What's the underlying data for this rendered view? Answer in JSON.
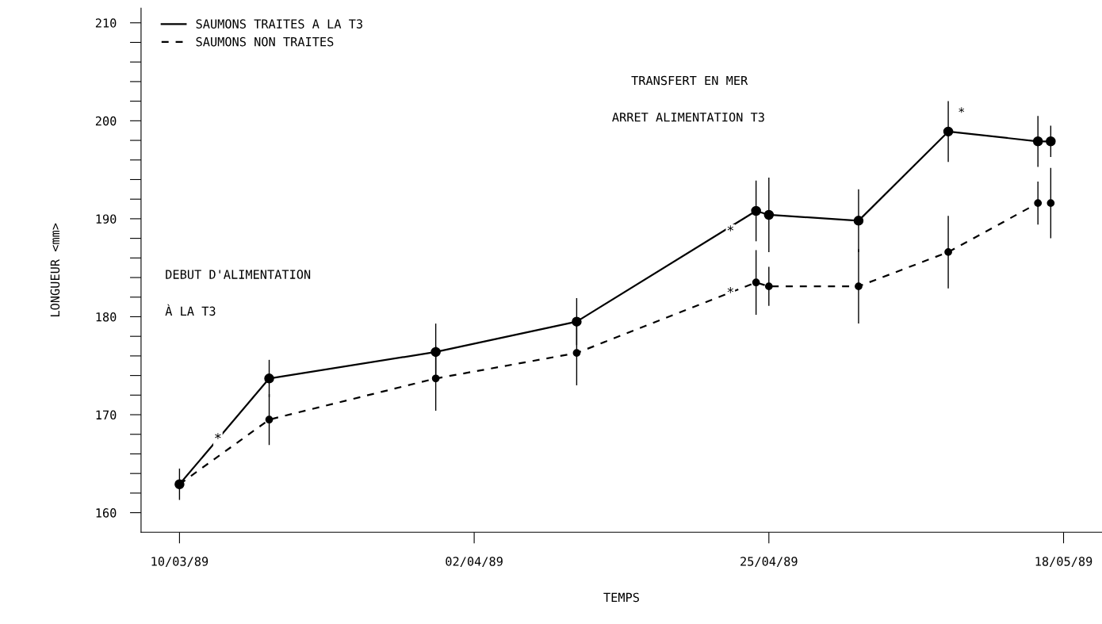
{
  "chart_data": {
    "type": "line",
    "xlabel": "TEMPS",
    "ylabel": "LONGUEUR <mm>",
    "x": [
      "1989-03-10",
      "1989-03-17",
      "1989-03-30",
      "1989-04-10",
      "1989-04-24",
      "1989-04-25",
      "1989-05-02",
      "1989-05-09",
      "1989-05-16",
      "1989-05-17"
    ],
    "series": [
      {
        "name": "SAUMONS TRAITES A LA T3",
        "color": "#000000",
        "line_style": "solid",
        "values": [
          162.9,
          173.7,
          176.4,
          179.5,
          190.8,
          190.4,
          189.8,
          198.9,
          197.9,
          197.9
        ],
        "errors": [
          1.6,
          1.9,
          2.9,
          2.4,
          3.1,
          3.8,
          3.2,
          3.1,
          2.6,
          1.6
        ]
      },
      {
        "name": "SAUMONS NON TRAITES",
        "color": "#000000",
        "line_style": "dashed",
        "values": [
          162.9,
          169.5,
          173.7,
          176.3,
          183.5,
          183.1,
          183.1,
          186.6,
          191.6,
          191.6
        ],
        "errors": [
          null,
          2.6,
          3.3,
          3.3,
          3.3,
          2.0,
          3.8,
          3.7,
          2.2,
          3.6
        ]
      }
    ],
    "marker": "circle",
    "xlim": [
      "1989-03-07",
      "1989-05-21"
    ],
    "xticks": [
      {
        "value": "1989-03-10",
        "label": "10/03/89"
      },
      {
        "value": "1989-04-02",
        "label": "02/04/89"
      },
      {
        "value": "1989-04-25",
        "label": "25/04/89"
      },
      {
        "value": "1989-05-18",
        "label": "18/05/89"
      }
    ],
    "ylim": [
      158,
      211.5
    ],
    "yticks": [
      160,
      {
        "value": 162,
        "label": null
      },
      {
        "value": 164,
        "label": null
      },
      {
        "value": 166,
        "label": null
      },
      {
        "value": 168,
        "label": null
      },
      170,
      {
        "value": 172,
        "label": null
      },
      {
        "value": 174,
        "label": null
      },
      {
        "value": 176,
        "label": null
      },
      {
        "value": 178,
        "label": null
      },
      180,
      {
        "value": 182,
        "label": null
      },
      {
        "value": 184,
        "label": null
      },
      {
        "value": 186,
        "label": null
      },
      {
        "value": 188,
        "label": null
      },
      190,
      {
        "value": 192,
        "label": null
      },
      {
        "value": 194,
        "label": null
      },
      {
        "value": 196,
        "label": null
      },
      {
        "value": 198,
        "label": null
      },
      200,
      {
        "value": 202,
        "label": null
      },
      {
        "value": 204,
        "label": null
      },
      {
        "value": 206,
        "label": null
      },
      {
        "value": 208,
        "label": null
      },
      210
    ],
    "grid": false,
    "legend": "top left",
    "annotations": [
      "DEBUT D'ALIMENTATION",
      "À LA T3",
      "TRANSFERT EN MER",
      "ARRET ALIMENTATION T3",
      "*",
      {
        "text": "*",
        "x": "1989-03-13",
        "y": 167.5
      },
      {
        "text": "*",
        "x": "1989-04-22",
        "y": 188.7
      },
      {
        "text": "*",
        "x": "1989-04-22",
        "y": 182.4
      }
    ]
  }
}
